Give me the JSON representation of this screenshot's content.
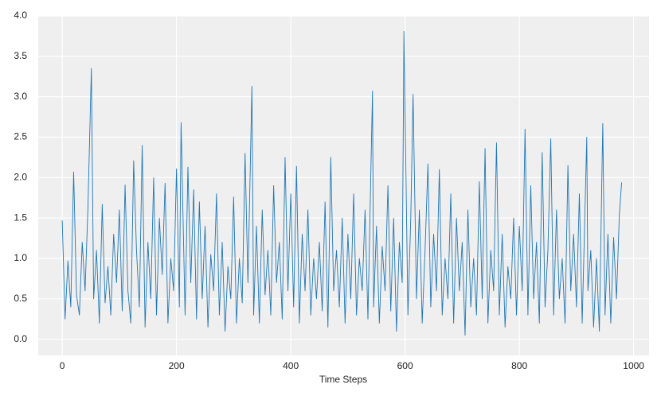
{
  "chart_data": {
    "type": "line",
    "xlabel": "Time Steps",
    "color": "#1f77b4",
    "grid": true,
    "x": [
      0,
      5,
      10,
      15,
      20,
      25,
      30,
      35,
      40,
      45,
      51,
      55,
      60,
      65,
      70,
      75,
      80,
      85,
      90,
      95,
      100,
      105,
      110,
      115,
      120,
      125,
      130,
      135,
      140,
      145,
      150,
      155,
      160,
      165,
      170,
      175,
      180,
      185,
      190,
      195,
      200,
      205,
      208,
      215,
      220,
      225,
      230,
      235,
      240,
      245,
      250,
      255,
      260,
      265,
      270,
      275,
      280,
      285,
      290,
      295,
      300,
      305,
      310,
      315,
      320,
      325,
      332,
      335,
      340,
      345,
      350,
      355,
      360,
      365,
      370,
      375,
      380,
      385,
      390,
      395,
      400,
      405,
      410,
      415,
      420,
      425,
      430,
      435,
      440,
      445,
      450,
      455,
      460,
      465,
      470,
      475,
      480,
      485,
      490,
      495,
      500,
      505,
      510,
      515,
      520,
      525,
      530,
      535,
      543,
      545,
      550,
      555,
      560,
      565,
      570,
      575,
      580,
      585,
      590,
      595,
      598,
      605,
      610,
      614,
      620,
      625,
      630,
      635,
      640,
      645,
      650,
      655,
      660,
      665,
      670,
      675,
      680,
      685,
      690,
      695,
      700,
      705,
      710,
      715,
      720,
      725,
      730,
      735,
      740,
      745,
      750,
      755,
      760,
      765,
      770,
      775,
      780,
      785,
      790,
      795,
      800,
      805,
      810,
      815,
      820,
      825,
      830,
      835,
      840,
      845,
      850,
      855,
      860,
      865,
      870,
      875,
      880,
      885,
      890,
      895,
      900,
      905,
      910,
      918,
      920,
      925,
      930,
      935,
      940,
      946,
      950,
      955,
      960,
      965,
      970,
      975,
      979
    ],
    "values": [
      1.47,
      0.25,
      0.97,
      0.4,
      2.07,
      0.55,
      0.3,
      1.2,
      0.6,
      1.63,
      3.35,
      0.5,
      1.1,
      0.2,
      1.67,
      0.45,
      0.9,
      0.3,
      1.3,
      0.7,
      1.6,
      0.35,
      1.91,
      0.6,
      0.2,
      2.21,
      1.1,
      0.4,
      2.4,
      0.15,
      1.2,
      0.5,
      2.0,
      0.3,
      1.5,
      0.8,
      1.93,
      0.2,
      1.0,
      0.6,
      2.11,
      0.4,
      2.68,
      0.3,
      2.13,
      0.7,
      1.85,
      0.25,
      1.7,
      0.5,
      1.4,
      0.15,
      1.05,
      0.6,
      1.8,
      0.3,
      1.2,
      0.1,
      0.9,
      0.5,
      1.76,
      0.2,
      1.0,
      0.45,
      2.3,
      0.7,
      3.13,
      0.3,
      1.4,
      0.2,
      1.6,
      0.55,
      1.1,
      0.3,
      1.9,
      0.7,
      1.2,
      0.25,
      2.25,
      0.6,
      1.8,
      0.4,
      2.14,
      0.2,
      1.3,
      0.6,
      1.6,
      0.3,
      1.0,
      0.5,
      1.2,
      0.35,
      1.7,
      0.15,
      2.25,
      0.6,
      1.1,
      0.4,
      1.5,
      0.2,
      1.3,
      0.5,
      1.8,
      0.3,
      1.0,
      0.6,
      1.6,
      0.25,
      3.07,
      0.4,
      1.4,
      0.2,
      1.15,
      0.6,
      1.9,
      0.35,
      1.5,
      0.1,
      1.2,
      0.7,
      3.81,
      0.3,
      1.5,
      3.03,
      0.5,
      1.6,
      0.2,
      1.1,
      2.17,
      0.4,
      1.3,
      0.6,
      2.1,
      0.3,
      1.0,
      0.5,
      1.8,
      0.2,
      1.5,
      0.6,
      1.2,
      0.05,
      1.6,
      0.4,
      1.0,
      0.3,
      1.95,
      0.5,
      2.36,
      0.2,
      1.1,
      0.6,
      2.43,
      0.3,
      1.3,
      0.15,
      0.9,
      0.5,
      1.5,
      0.3,
      1.4,
      0.6,
      2.6,
      0.3,
      1.9,
      0.5,
      1.2,
      0.2,
      2.31,
      0.4,
      1.1,
      2.48,
      0.3,
      1.6,
      0.5,
      1.0,
      0.2,
      2.15,
      0.6,
      1.3,
      0.4,
      1.8,
      0.2,
      2.5,
      0.6,
      1.1,
      0.15,
      1.0,
      0.1,
      2.67,
      0.3,
      1.3,
      0.2,
      1.26,
      0.5,
      1.54,
      1.94
    ],
    "xlim": [
      -42,
      1027
    ],
    "ylim": [
      -0.2,
      4.0
    ],
    "xticks": [
      0,
      200,
      400,
      600,
      800,
      1000
    ],
    "yticks": [
      {
        "value": 0,
        "label": "0.0"
      },
      0.5,
      {
        "value": 1,
        "label": "1.0"
      },
      1.5,
      {
        "value": 2,
        "label": "2.0"
      },
      2.5,
      {
        "value": 3,
        "label": "3.0"
      },
      3.5,
      {
        "value": 4,
        "label": "4.0"
      }
    ]
  }
}
